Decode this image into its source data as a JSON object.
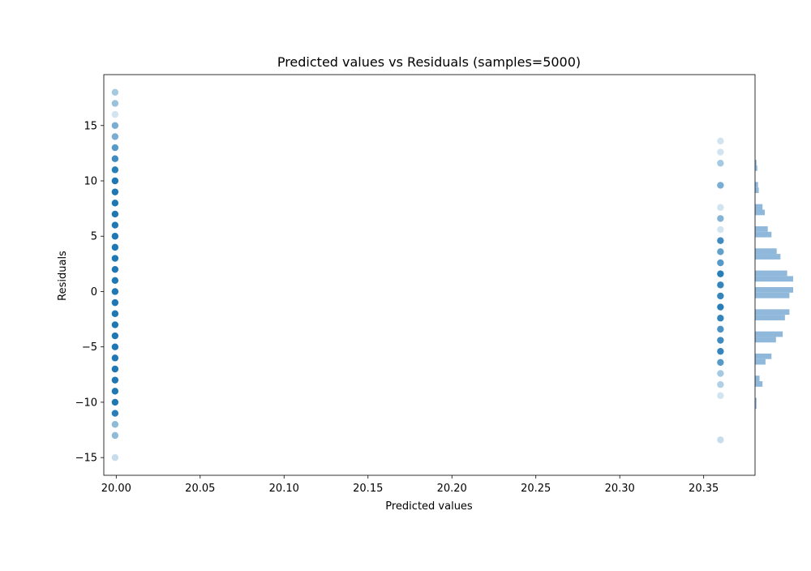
{
  "chart_data": {
    "type": "scatter",
    "title": "Predicted values vs Residuals (samples=5000)",
    "xlabel": "Predicted values",
    "ylabel": "Residuals",
    "xlim": [
      19.9926,
      20.3806
    ],
    "ylim": [
      -16.6,
      19.6
    ],
    "x_ticks": [
      20.0,
      20.05,
      20.1,
      20.15,
      20.2,
      20.25,
      20.3,
      20.35
    ],
    "x_tick_labels": [
      "20.00",
      "20.05",
      "20.10",
      "20.15",
      "20.20",
      "20.25",
      "20.30",
      "20.35"
    ],
    "y_ticks": [
      -15,
      -10,
      -5,
      0,
      5,
      10,
      15
    ],
    "y_tick_labels": [
      "−15",
      "−10",
      "−5",
      "0",
      "5",
      "10",
      "15"
    ],
    "grid": false,
    "colors": {
      "points": "#1f77b4",
      "histogram": "#8fb8da"
    },
    "series": [
      {
        "x_value": 19.9993,
        "points": [
          {
            "y": 18,
            "density": 0.4
          },
          {
            "y": 17,
            "density": 0.45
          },
          {
            "y": 16,
            "density": 0.2
          },
          {
            "y": 15,
            "density": 0.6
          },
          {
            "y": 14,
            "density": 0.6
          },
          {
            "y": 13,
            "density": 0.75
          },
          {
            "y": 12,
            "density": 0.85
          },
          {
            "y": 11,
            "density": 0.95
          },
          {
            "y": 10,
            "density": 1
          },
          {
            "y": 9,
            "density": 1
          },
          {
            "y": 8,
            "density": 1
          },
          {
            "y": 7,
            "density": 1
          },
          {
            "y": 6,
            "density": 1
          },
          {
            "y": 5,
            "density": 1
          },
          {
            "y": 4,
            "density": 1
          },
          {
            "y": 3,
            "density": 1
          },
          {
            "y": 2,
            "density": 1
          },
          {
            "y": 1,
            "density": 1
          },
          {
            "y": 0,
            "density": 1
          },
          {
            "y": -1,
            "density": 1
          },
          {
            "y": -2,
            "density": 1
          },
          {
            "y": -3,
            "density": 1
          },
          {
            "y": -4,
            "density": 1
          },
          {
            "y": -5,
            "density": 1
          },
          {
            "y": -6,
            "density": 1
          },
          {
            "y": -7,
            "density": 1
          },
          {
            "y": -8,
            "density": 1
          },
          {
            "y": -9,
            "density": 1
          },
          {
            "y": -10,
            "density": 1
          },
          {
            "y": -11,
            "density": 0.95
          },
          {
            "y": -12,
            "density": 0.5
          },
          {
            "y": -13,
            "density": 0.5
          },
          {
            "y": -15,
            "density": 0.25
          }
        ]
      },
      {
        "x_value": 20.36,
        "points": [
          {
            "y": 13.6,
            "density": 0.2
          },
          {
            "y": 12.6,
            "density": 0.2
          },
          {
            "y": 11.6,
            "density": 0.4
          },
          {
            "y": 9.6,
            "density": 0.6
          },
          {
            "y": 7.6,
            "density": 0.2
          },
          {
            "y": 6.6,
            "density": 0.55
          },
          {
            "y": 5.6,
            "density": 0.2
          },
          {
            "y": 4.6,
            "density": 0.85
          },
          {
            "y": 3.6,
            "density": 0.7
          },
          {
            "y": 2.6,
            "density": 0.75
          },
          {
            "y": 1.6,
            "density": 0.95
          },
          {
            "y": 0.6,
            "density": 0.9
          },
          {
            "y": -0.4,
            "density": 0.9
          },
          {
            "y": -1.4,
            "density": 0.95
          },
          {
            "y": -2.4,
            "density": 0.9
          },
          {
            "y": -3.4,
            "density": 0.8
          },
          {
            "y": -4.4,
            "density": 0.85
          },
          {
            "y": -5.4,
            "density": 0.9
          },
          {
            "y": -6.4,
            "density": 0.75
          },
          {
            "y": -7.4,
            "density": 0.4
          },
          {
            "y": -8.4,
            "density": 0.35
          },
          {
            "y": -9.4,
            "density": 0.2
          },
          {
            "y": -13.4,
            "density": 0.25
          }
        ]
      }
    ],
    "histogram": {
      "orientation": "horizontal",
      "bins": [
        {
          "y_low": -10.6,
          "y_high": -10.1,
          "count": 2
        },
        {
          "y_low": -10.1,
          "y_high": -9.6,
          "count": 2
        },
        {
          "y_low": -8.6,
          "y_high": -8.1,
          "count": 10
        },
        {
          "y_low": -8.1,
          "y_high": -7.6,
          "count": 6
        },
        {
          "y_low": -6.6,
          "y_high": -6.1,
          "count": 14
        },
        {
          "y_low": -6.1,
          "y_high": -5.6,
          "count": 22
        },
        {
          "y_low": -4.6,
          "y_high": -4.1,
          "count": 28
        },
        {
          "y_low": -4.1,
          "y_high": -3.6,
          "count": 37
        },
        {
          "y_low": -2.6,
          "y_high": -2.1,
          "count": 40
        },
        {
          "y_low": -2.1,
          "y_high": -1.6,
          "count": 46
        },
        {
          "y_low": -0.6,
          "y_high": -0.1,
          "count": 46
        },
        {
          "y_low": -0.1,
          "y_high": 0.4,
          "count": 51
        },
        {
          "y_low": 0.9,
          "y_high": 1.4,
          "count": 51
        },
        {
          "y_low": 1.4,
          "y_high": 1.9,
          "count": 43
        },
        {
          "y_low": 2.9,
          "y_high": 3.4,
          "count": 34
        },
        {
          "y_low": 3.4,
          "y_high": 3.9,
          "count": 29
        },
        {
          "y_low": 4.9,
          "y_high": 5.4,
          "count": 22
        },
        {
          "y_low": 5.4,
          "y_high": 5.9,
          "count": 17
        },
        {
          "y_low": 6.9,
          "y_high": 7.4,
          "count": 13
        },
        {
          "y_low": 7.4,
          "y_high": 7.9,
          "count": 10
        },
        {
          "y_low": 8.9,
          "y_high": 9.4,
          "count": 5
        },
        {
          "y_low": 9.4,
          "y_high": 9.9,
          "count": 4
        },
        {
          "y_low": 10.9,
          "y_high": 11.4,
          "count": 3
        },
        {
          "y_low": 11.4,
          "y_high": 11.9,
          "count": 2
        }
      ]
    }
  }
}
